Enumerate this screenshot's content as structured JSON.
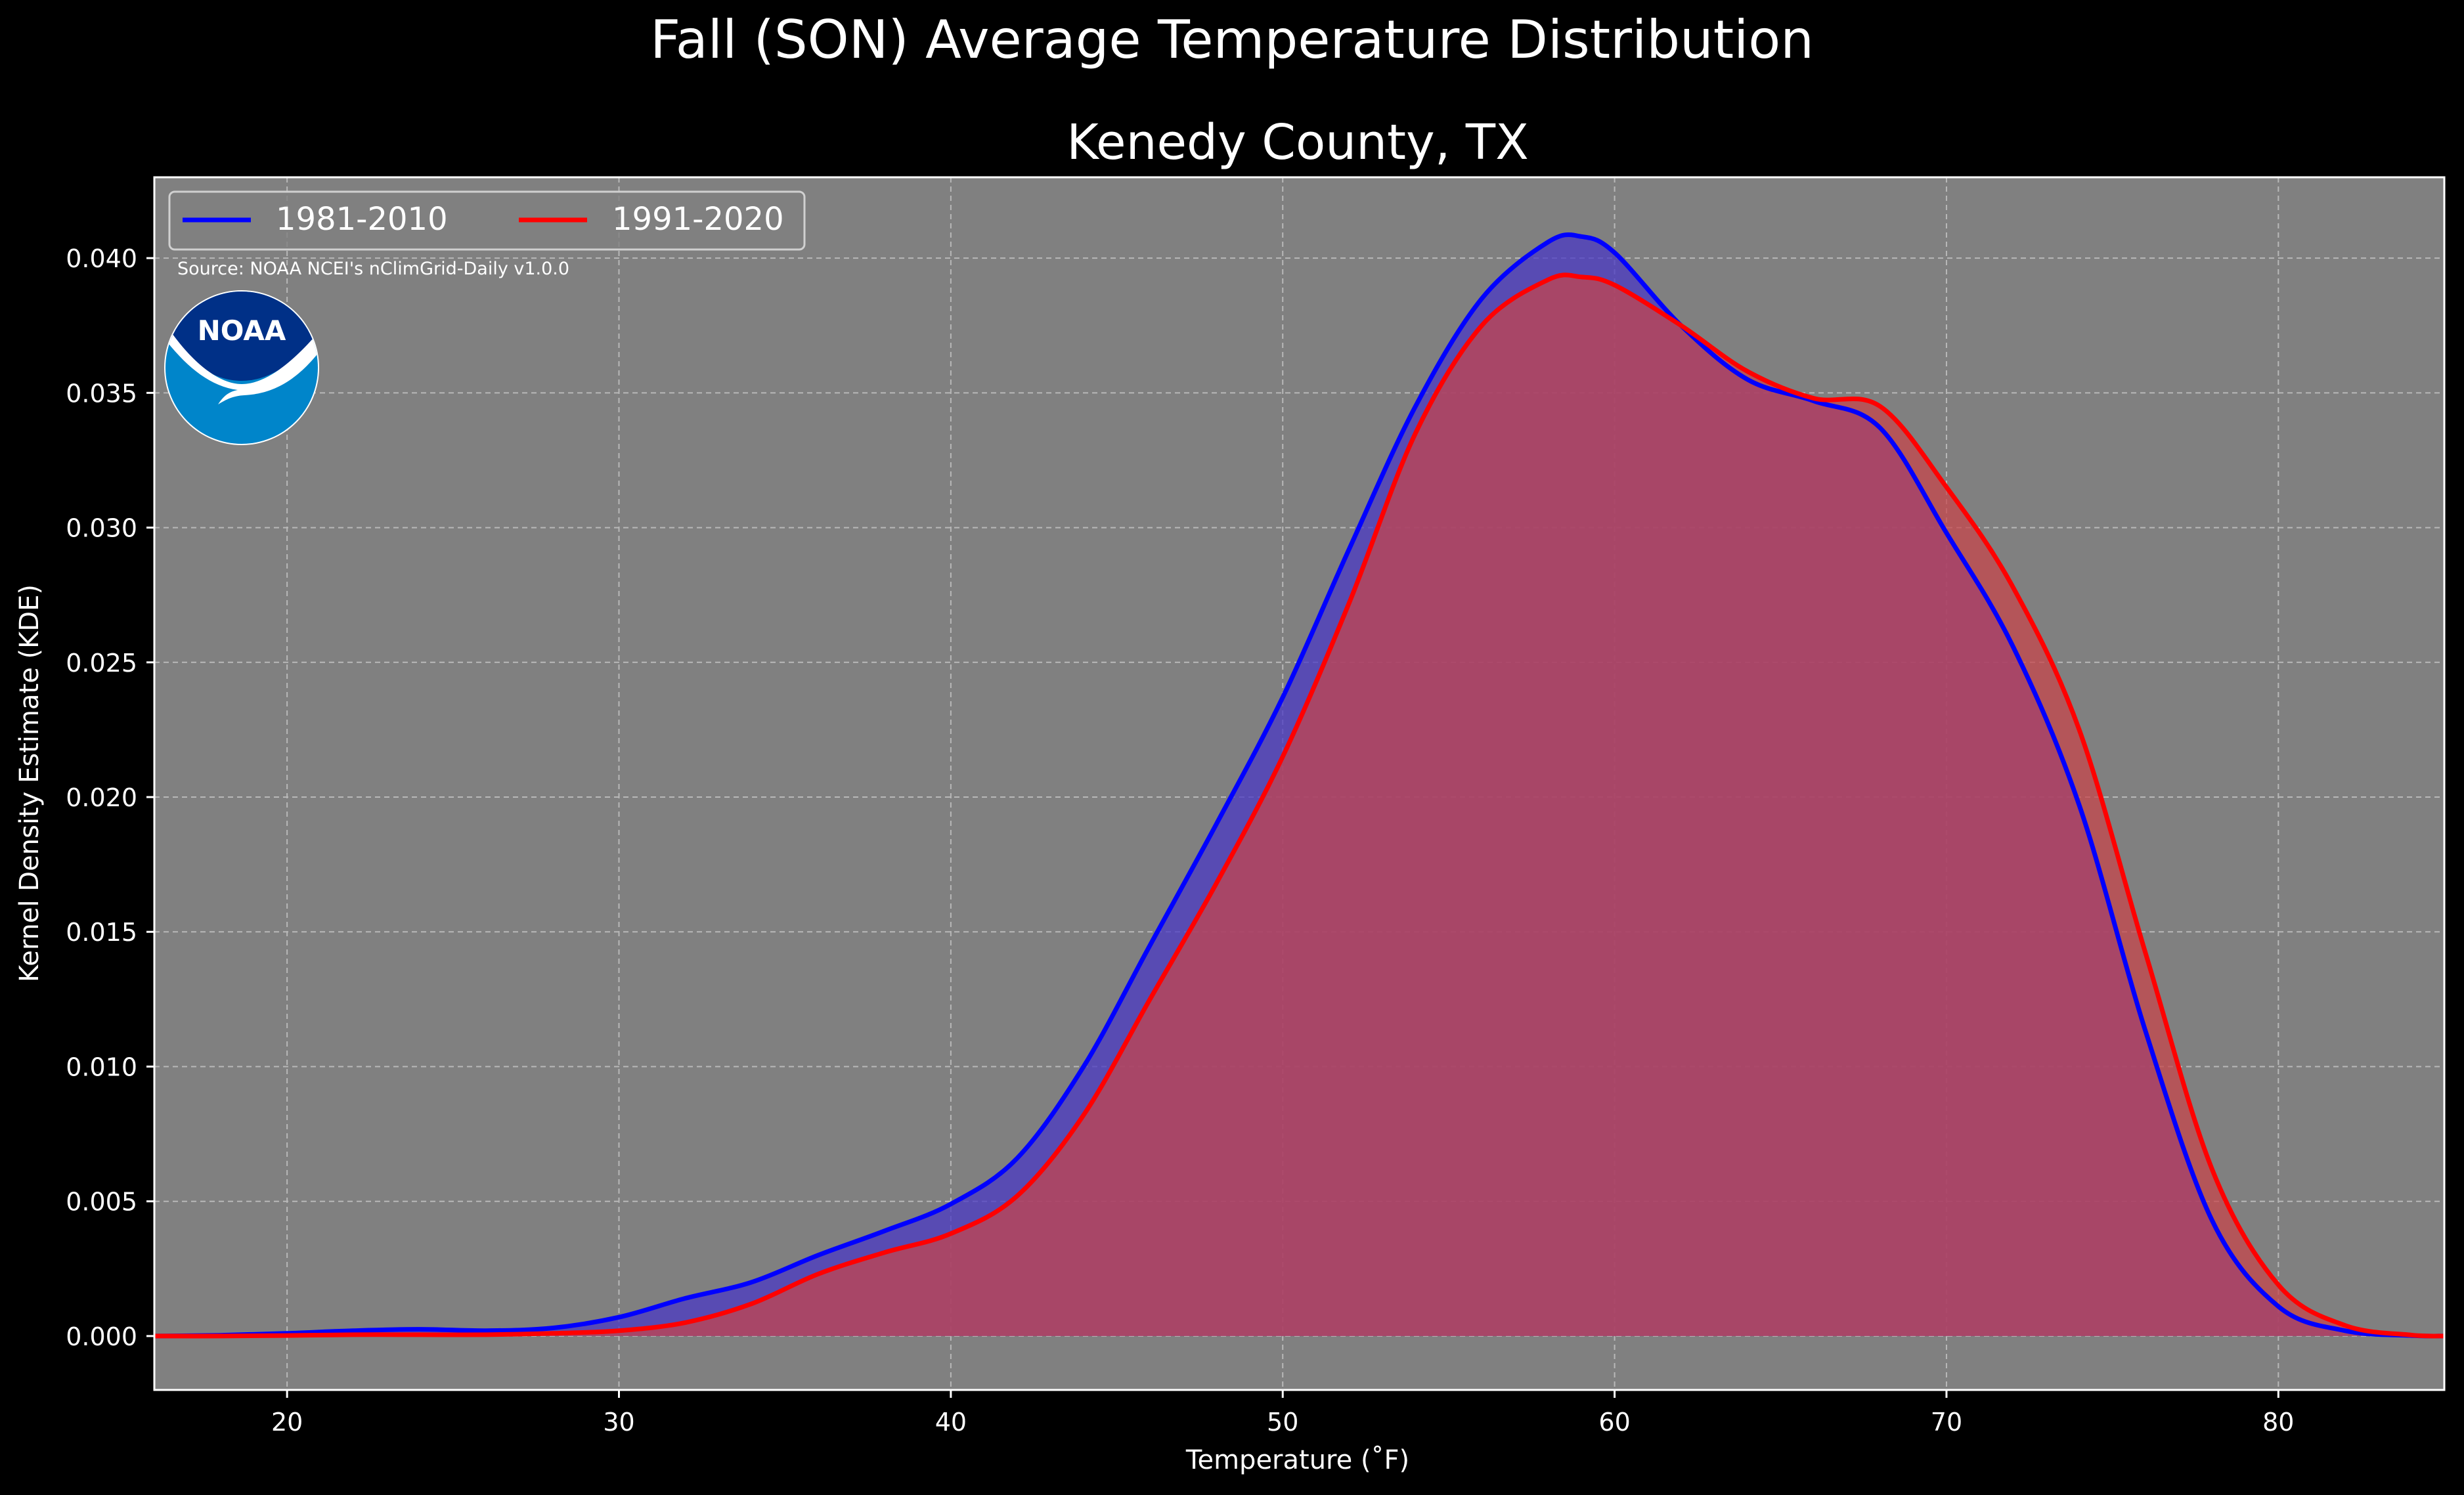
{
  "figure": {
    "suptitle": "Fall (SON) Average Temperature Distribution",
    "source_note": "Source: NOAA NCEI's nClimGrid-Daily v1.0.0",
    "logo_text": "NOAA"
  },
  "colors": {
    "background": "#000000",
    "plot_background": "#808080",
    "text": "#ffffff",
    "grid": "#b8b8b8",
    "series_1981_2010": "#0000ff",
    "series_1991_2020": "#ff0000",
    "fill_overlap": "#9c1d5c",
    "fill_1981_2010_only": "#4b3ac4",
    "fill_1991_2020_only": "#c7444a",
    "logo_blue": "#0085ca",
    "logo_navy": "#003087"
  },
  "chart_data": {
    "type": "area",
    "title": "Kenedy County, TX",
    "xlabel": "Temperature ($^\\circ$F)",
    "xlabel_display": "Temperature (˚F)",
    "ylabel": "Kernel Density Estimate (KDE)",
    "xlim": [
      16,
      85
    ],
    "ylim": [
      -0.002,
      0.043
    ],
    "xticks": [
      20,
      30,
      40,
      50,
      60,
      70,
      80
    ],
    "xtick_labels": [
      "20",
      "30",
      "40",
      "50",
      "60",
      "70",
      "80"
    ],
    "yticks": [
      0.0,
      0.005,
      0.01,
      0.015,
      0.02,
      0.025,
      0.03,
      0.035,
      0.04
    ],
    "ytick_labels": [
      "0.000",
      "0.005",
      "0.010",
      "0.015",
      "0.020",
      "0.025",
      "0.030",
      "0.035",
      "0.040"
    ],
    "grid": true,
    "legend_placement": "top-left",
    "series": [
      {
        "name": "1981-2010",
        "color": "#0000ff",
        "x": [
          16,
          18,
          20,
          22,
          24,
          26,
          28,
          30,
          32,
          34,
          36,
          38,
          40,
          42,
          44,
          46,
          48,
          50,
          52,
          54,
          56,
          58,
          59,
          60,
          62,
          64,
          66,
          68,
          70,
          72,
          74,
          76,
          78,
          80,
          82,
          84,
          85
        ],
        "y": [
          0.0,
          3e-05,
          0.0001,
          0.0002,
          0.00025,
          0.0002,
          0.0003,
          0.0007,
          0.0014,
          0.002,
          0.003,
          0.0039,
          0.0049,
          0.0066,
          0.01,
          0.0145,
          0.019,
          0.0237,
          0.0292,
          0.0345,
          0.0385,
          0.0406,
          0.0408,
          0.0402,
          0.0375,
          0.0355,
          0.0347,
          0.0337,
          0.0298,
          0.0256,
          0.0197,
          0.0113,
          0.0043,
          0.0011,
          0.0002,
          2e-05,
          0.0
        ]
      },
      {
        "name": "1991-2020",
        "color": "#ff0000",
        "x": [
          16,
          18,
          20,
          22,
          24,
          26,
          28,
          30,
          32,
          34,
          36,
          38,
          40,
          42,
          44,
          46,
          48,
          50,
          52,
          54,
          56,
          58,
          59,
          60,
          62,
          64,
          66,
          68,
          70,
          72,
          74,
          76,
          78,
          80,
          82,
          84,
          85
        ],
        "y": [
          0.0,
          0.0,
          2e-05,
          5e-05,
          5e-05,
          5e-05,
          0.0001,
          0.0002,
          0.0005,
          0.0012,
          0.0023,
          0.0031,
          0.0038,
          0.0052,
          0.0082,
          0.0125,
          0.0168,
          0.0215,
          0.0272,
          0.0335,
          0.0375,
          0.0392,
          0.0393,
          0.039,
          0.0375,
          0.0358,
          0.0348,
          0.0345,
          0.0315,
          0.0278,
          0.0225,
          0.0142,
          0.0062,
          0.0019,
          0.0004,
          4e-05,
          0.0
        ]
      }
    ]
  }
}
